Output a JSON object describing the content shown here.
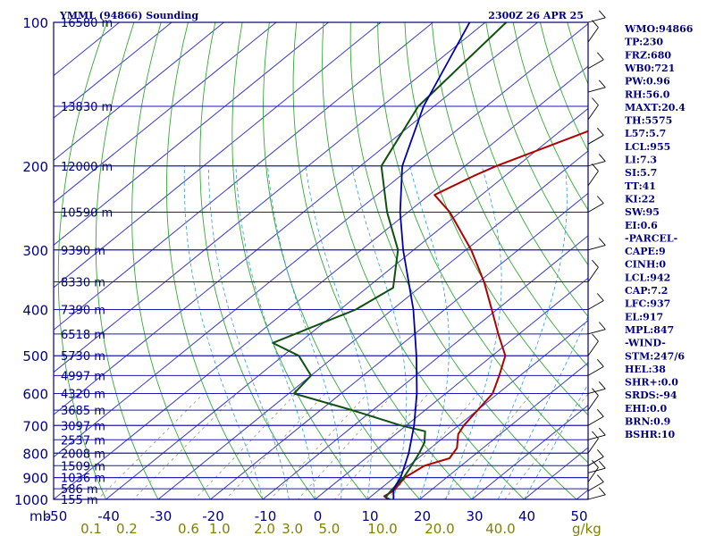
{
  "header": {
    "station": "YMML (94866) Sounding",
    "time": "2300Z 26 APR 25"
  },
  "stats": [
    "WMO:94866",
    "TP:230",
    "FRZ:680",
    "WB0:721",
    "PW:0.96",
    "RH:56.0",
    "MAXT:20.4",
    "TH:5575",
    "L57:5.7",
    "LCL:955",
    "LI:7.3",
    "SI:5.7",
    "TT:41",
    "KI:22",
    "SW:95",
    "EI:0.6",
    "-PARCEL-",
    "CAPE:9",
    "CINH:0",
    "LCL:942",
    "CAP:7.2",
    "LFC:937",
    "EL:917",
    "MPL:847",
    "-WIND-",
    "STM:247/6",
    "HEL:38",
    "SHR+:0.0",
    "SRDS:-94",
    "EHI:0.0",
    "BRN:0.9",
    "BSHR:10"
  ],
  "colors": {
    "frame": "#000080",
    "isobar": "#1a1ab0",
    "isotherm": "#3a3acc",
    "dry_adiabat": "#33aa33",
    "moist_adiabat": "#3399dd",
    "mixing_ratio": "#999966",
    "temperature": "#b00000",
    "dewpoint": "#105010",
    "parcel": "#0000aa"
  },
  "chart_data": {
    "type": "skew-t log-p sounding",
    "y_axis": {
      "unit_label": "mb",
      "scale": "log",
      "range": [
        1000,
        100
      ],
      "ticks": [
        "100",
        "200",
        "300",
        "400",
        "500",
        "600",
        "700",
        "800",
        "900",
        "1000"
      ]
    },
    "x_axis": {
      "unit": "degC",
      "range": [
        -50,
        50
      ],
      "ticks": [
        "-50",
        "-40",
        "-30",
        "-20",
        "-10",
        "0",
        "10",
        "20",
        "30",
        "40",
        "50"
      ]
    },
    "mixing_ratio_ticks": [
      "0.1",
      "0.2",
      "0.6",
      "1.0",
      "2.0",
      "3.0",
      "5.0",
      "10.0",
      "20.0",
      "40.0"
    ],
    "mixing_ratio_unit": "g/kg",
    "height_labels": [
      {
        "p": 100,
        "label": "16580 m"
      },
      {
        "p": 150,
        "label": "13830 m"
      },
      {
        "p": 200,
        "label": "12000 m"
      },
      {
        "p": 250,
        "label": "10590 m"
      },
      {
        "p": 300,
        "label": "9390 m"
      },
      {
        "p": 350,
        "label": "8330 m"
      },
      {
        "p": 400,
        "label": "7390 m"
      },
      {
        "p": 450,
        "label": "6518 m"
      },
      {
        "p": 500,
        "label": "5730 m"
      },
      {
        "p": 550,
        "label": "4997 m"
      },
      {
        "p": 600,
        "label": "4320 m"
      },
      {
        "p": 650,
        "label": "3685 m"
      },
      {
        "p": 700,
        "label": "3097 m"
      },
      {
        "p": 750,
        "label": "2537 m"
      },
      {
        "p": 800,
        "label": "2008 m"
      },
      {
        "p": 850,
        "label": "1509 m"
      },
      {
        "p": 900,
        "label": "1036 m"
      },
      {
        "p": 950,
        "label": "586 m"
      },
      {
        "p": 1000,
        "label": "155 m"
      }
    ],
    "series": [
      {
        "key": "temperature",
        "points": [
          [
            1010,
            15.5
          ],
          [
            995,
            13.5
          ],
          [
            985,
            12.5
          ],
          [
            960,
            13
          ],
          [
            900,
            12
          ],
          [
            850,
            13
          ],
          [
            820,
            16
          ],
          [
            780,
            15
          ],
          [
            730,
            12
          ],
          [
            700,
            11
          ],
          [
            600,
            9
          ],
          [
            550,
            6
          ],
          [
            500,
            2.5
          ],
          [
            450,
            -4
          ],
          [
            400,
            -11
          ],
          [
            350,
            -19
          ],
          [
            300,
            -29
          ],
          [
            250,
            -42
          ],
          [
            230,
            -49
          ],
          [
            210,
            -46
          ],
          [
            200,
            -44
          ],
          [
            150,
            -28
          ],
          [
            130,
            -21
          ],
          [
            115,
            -18
          ],
          [
            112,
            -18
          ],
          [
            100,
            -20
          ]
        ]
      },
      {
        "key": "dewpoint",
        "points": [
          [
            1010,
            15.5
          ],
          [
            990,
            13
          ],
          [
            960,
            12.5
          ],
          [
            900,
            11.8
          ],
          [
            850,
            10.5
          ],
          [
            800,
            9
          ],
          [
            760,
            7.5
          ],
          [
            720,
            5
          ],
          [
            700,
            -1
          ],
          [
            650,
            -14
          ],
          [
            600,
            -29
          ],
          [
            550,
            -30
          ],
          [
            500,
            -37
          ],
          [
            470,
            -45
          ],
          [
            400,
            -37
          ],
          [
            360,
            -35
          ],
          [
            300,
            -43
          ],
          [
            250,
            -54
          ],
          [
            200,
            -66
          ],
          [
            150,
            -73
          ],
          [
            100,
            -76
          ]
        ]
      },
      {
        "key": "parcel",
        "points": [
          [
            1010,
            15.5
          ],
          [
            950,
            12.5
          ],
          [
            900,
            11.2
          ],
          [
            850,
            9.2
          ],
          [
            800,
            7
          ],
          [
            700,
            1.5
          ],
          [
            600,
            -5.5
          ],
          [
            500,
            -14.5
          ],
          [
            400,
            -26
          ],
          [
            300,
            -42
          ],
          [
            250,
            -51.5
          ],
          [
            200,
            -62
          ],
          [
            150,
            -72
          ],
          [
            100,
            -83
          ]
        ]
      }
    ]
  }
}
